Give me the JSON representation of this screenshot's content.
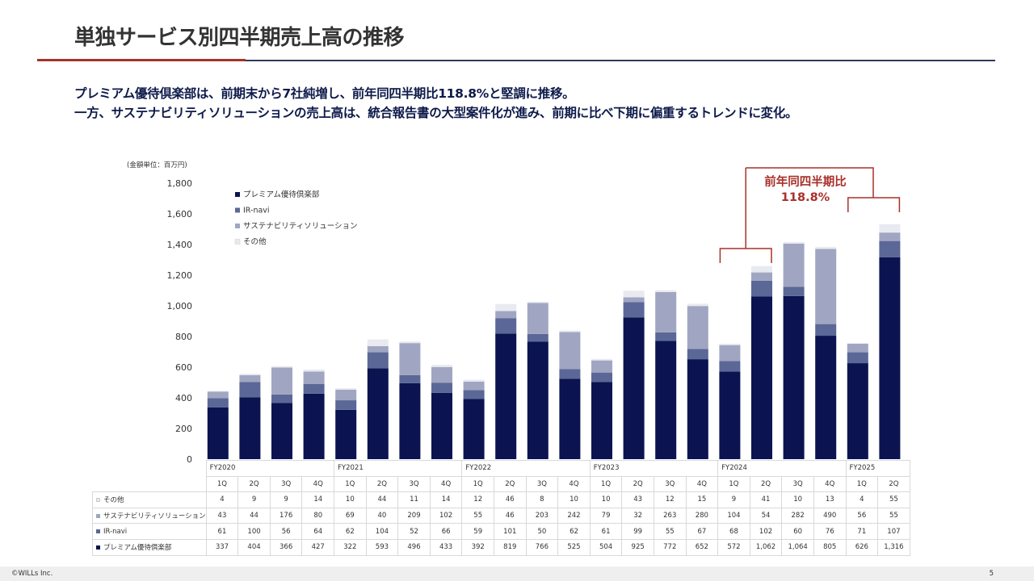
{
  "header": {
    "title": "単独サービス別四半期売上高の推移",
    "line1": "プレミアム優待倶楽部は、前期末から7社純増し、前年同四半期比118.8%と堅調に推移。",
    "line2": "一方、サステナビリティソリューションの売上高は、統合報告書の大型案件化が進み、前期に比べ下期に偏重するトレンドに変化。"
  },
  "colors": {
    "premium": "#0b1450",
    "irnavi": "#5b6796",
    "sustain": "#a0a6c2",
    "other": "#e9eaf0",
    "accent": "#a9302a"
  },
  "chart_data": {
    "type": "bar",
    "stacked": true,
    "unit_label": "(金額単位：百万円)",
    "ylim": [
      0,
      1800
    ],
    "yticks": [
      "0",
      "200",
      "400",
      "600",
      "800",
      "1,000",
      "1,200",
      "1,400",
      "1,600",
      "1,800"
    ],
    "fiscal_years": [
      "FY2020",
      "FY2021",
      "FY2022",
      "FY2023",
      "FY2024",
      "FY2025"
    ],
    "categories": [
      "1Q",
      "2Q",
      "3Q",
      "4Q",
      "1Q",
      "2Q",
      "3Q",
      "4Q",
      "1Q",
      "2Q",
      "3Q",
      "4Q",
      "1Q",
      "2Q",
      "3Q",
      "4Q",
      "1Q",
      "2Q",
      "3Q",
      "4Q",
      "1Q",
      "2Q"
    ],
    "legend": [
      {
        "key": "premium",
        "label": "プレミアム優待倶楽部"
      },
      {
        "key": "irnavi",
        "label": "IR-navi"
      },
      {
        "key": "sustain",
        "label": "サステナビリティソリューション"
      },
      {
        "key": "other",
        "label": "その他"
      }
    ],
    "series": [
      {
        "name": "プレミアム優待倶楽部",
        "key": "premium",
        "values": [
          337,
          404,
          366,
          427,
          322,
          593,
          496,
          433,
          392,
          819,
          766,
          525,
          504,
          925,
          772,
          652,
          572,
          1062,
          1064,
          805,
          626,
          1316
        ]
      },
      {
        "name": "IR-navi",
        "key": "irnavi",
        "values": [
          61,
          100,
          56,
          64,
          62,
          104,
          52,
          66,
          59,
          101,
          50,
          62,
          61,
          99,
          55,
          67,
          68,
          102,
          60,
          76,
          71,
          107
        ]
      },
      {
        "name": "サステナビリティソリューション",
        "key": "sustain",
        "values": [
          43,
          44,
          176,
          80,
          69,
          40,
          209,
          102,
          55,
          46,
          203,
          242,
          79,
          32,
          263,
          280,
          104,
          54,
          282,
          490,
          56,
          55
        ]
      },
      {
        "name": "その他",
        "key": "other",
        "values": [
          4,
          9,
          9,
          14,
          10,
          44,
          11,
          14,
          12,
          46,
          8,
          10,
          10,
          43,
          12,
          15,
          9,
          41,
          10,
          13,
          4,
          55
        ]
      }
    ],
    "annotation": {
      "line1": "前年同四半期比",
      "line2": "118.8%"
    }
  },
  "table": {
    "rows": [
      {
        "key": "other",
        "label": "その他",
        "cells": [
          "4",
          "9",
          "9",
          "14",
          "10",
          "44",
          "11",
          "14",
          "12",
          "46",
          "8",
          "10",
          "10",
          "43",
          "12",
          "15",
          "9",
          "41",
          "10",
          "13",
          "4",
          "55"
        ]
      },
      {
        "key": "sustain",
        "label": "サステナビリティソリューション",
        "cells": [
          "43",
          "44",
          "176",
          "80",
          "69",
          "40",
          "209",
          "102",
          "55",
          "46",
          "203",
          "242",
          "79",
          "32",
          "263",
          "280",
          "104",
          "54",
          "282",
          "490",
          "56",
          "55"
        ]
      },
      {
        "key": "irnavi",
        "label": "IR-navi",
        "cells": [
          "61",
          "100",
          "56",
          "64",
          "62",
          "104",
          "52",
          "66",
          "59",
          "101",
          "50",
          "62",
          "61",
          "99",
          "55",
          "67",
          "68",
          "102",
          "60",
          "76",
          "71",
          "107"
        ]
      },
      {
        "key": "premium",
        "label": "プレミアム優待倶楽部",
        "cells": [
          "337",
          "404",
          "366",
          "427",
          "322",
          "593",
          "496",
          "433",
          "392",
          "819",
          "766",
          "525",
          "504",
          "925",
          "772",
          "652",
          "572",
          "1,062",
          "1,064",
          "805",
          "626",
          "1,316"
        ]
      }
    ]
  },
  "footer": {
    "copyright": "©WILLs Inc.",
    "page": "5"
  }
}
